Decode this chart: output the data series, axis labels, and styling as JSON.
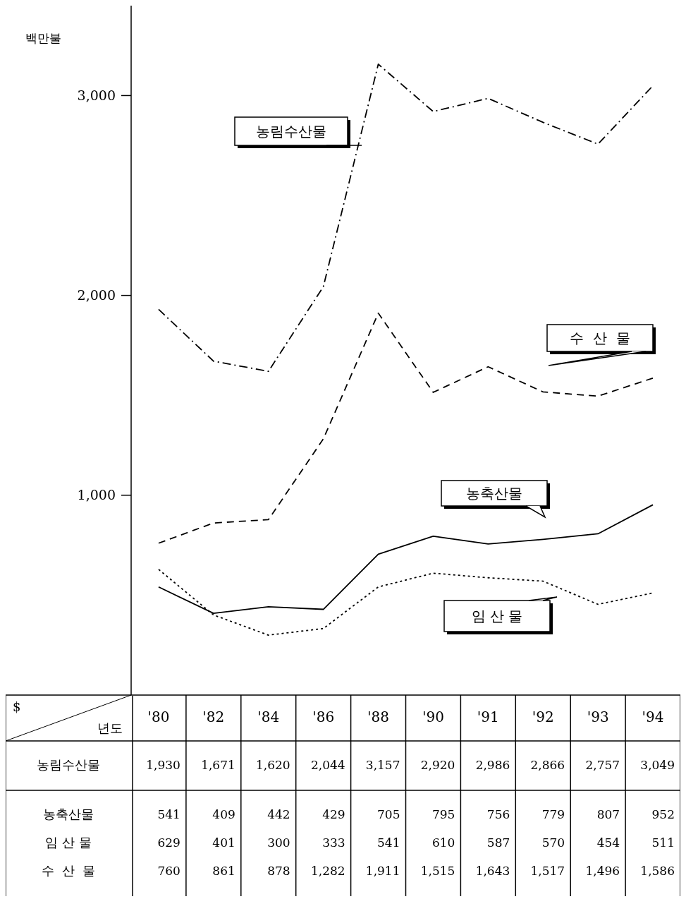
{
  "chart_data": {
    "type": "line",
    "ylabel": "백만불",
    "xlabel": "년도",
    "annotations": [
      "$"
    ],
    "categories": [
      "'80",
      "'82",
      "'84",
      "'86",
      "'88",
      "'90",
      "'91",
      "'92",
      "'93",
      "'94"
    ],
    "ylim": [
      0,
      3450
    ],
    "yticks": [
      {
        "value": 1000,
        "label": "1,000"
      },
      {
        "value": 2000,
        "label": "2,000"
      },
      {
        "value": 3000,
        "label": "3,000"
      }
    ],
    "grid": false,
    "legend": false,
    "series": [
      {
        "name": "농림수산물",
        "color": "#000000",
        "line_style": "dashdot",
        "values": [
          1930,
          1671,
          1620,
          2044,
          3157,
          2920,
          2986,
          2866,
          2757,
          3049
        ],
        "value_labels": [
          "1,930",
          "1,671",
          "1,620",
          "2,044",
          "3,157",
          "2,920",
          "2,986",
          "2,866",
          "2,757",
          "3,049"
        ]
      },
      {
        "name": "농축산물",
        "color": "#000000",
        "line_style": "solid",
        "values": [
          541,
          409,
          442,
          429,
          705,
          795,
          756,
          779,
          807,
          952
        ],
        "value_labels": [
          "541",
          "409",
          "442",
          "429",
          "705",
          "795",
          "756",
          "779",
          "807",
          "952"
        ]
      },
      {
        "name": "임 산 물",
        "color": "#000000",
        "line_style": "dotted",
        "values": [
          629,
          401,
          300,
          333,
          541,
          610,
          587,
          570,
          454,
          511
        ],
        "value_labels": [
          "629",
          "401",
          "300",
          "333",
          "541",
          "610",
          "587",
          "570",
          "454",
          "511"
        ]
      },
      {
        "name": "수  산  물",
        "color": "#000000",
        "line_style": "dashed",
        "values": [
          760,
          861,
          878,
          1282,
          1911,
          1515,
          1643,
          1517,
          1496,
          1586
        ],
        "value_labels": [
          "760",
          "861",
          "878",
          "1,282",
          "1,911",
          "1,515",
          "1,643",
          "1,517",
          "1,496",
          "1,586"
        ]
      }
    ]
  }
}
